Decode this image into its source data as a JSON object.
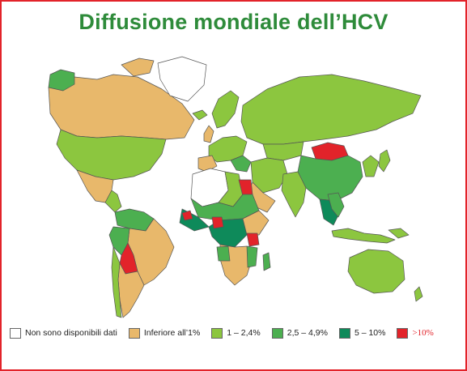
{
  "title": "Diffusione mondiale dell’HCV",
  "legend": [
    {
      "label": "Non sono disponibili dati",
      "color": "#ffffff"
    },
    {
      "label": "Inferiore all’1%",
      "color": "#e8b86b"
    },
    {
      "label": "1 – 2,4%",
      "color": "#8cc63f"
    },
    {
      "label": "2,5 – 4,9%",
      "color": "#4caf50"
    },
    {
      "label": "5 – 10%",
      "color": "#0e8a5a"
    },
    {
      "label": ">10%",
      "color": "#e2232a"
    }
  ]
}
